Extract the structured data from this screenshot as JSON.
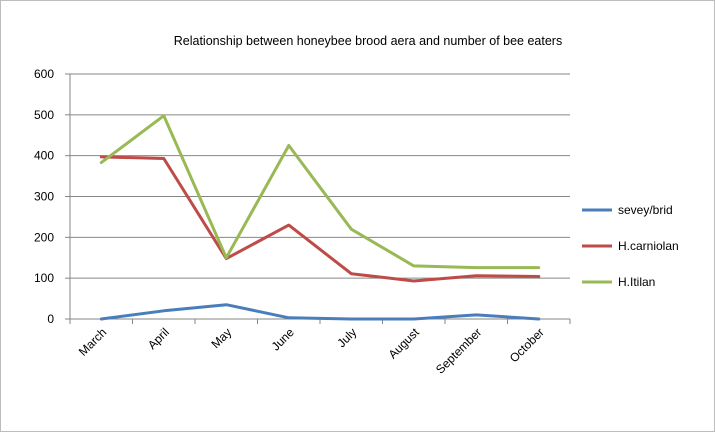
{
  "chart_data": {
    "type": "line",
    "title": "Relationship between honeybee brood aera and number of bee eaters",
    "xlabel": "",
    "ylabel": "",
    "categories": [
      "March",
      "April",
      "May",
      "June",
      "July",
      "August",
      "September",
      "October"
    ],
    "ylim": [
      0,
      600
    ],
    "yticks": [
      0,
      100,
      200,
      300,
      400,
      500,
      600
    ],
    "grid": true,
    "legend_position": "right",
    "series": [
      {
        "name": "sevey/brid",
        "color": "#4a7ebb",
        "values": [
          0,
          20,
          35,
          3,
          0,
          0,
          10,
          0
        ]
      },
      {
        "name": "H.carniolan",
        "color": "#be4b48",
        "values": [
          397,
          393,
          148,
          230,
          111,
          93,
          106,
          104
        ]
      },
      {
        "name": "H.Itilan",
        "color": "#98b954",
        "values": [
          383,
          498,
          150,
          425,
          220,
          130,
          126,
          126
        ]
      }
    ]
  }
}
